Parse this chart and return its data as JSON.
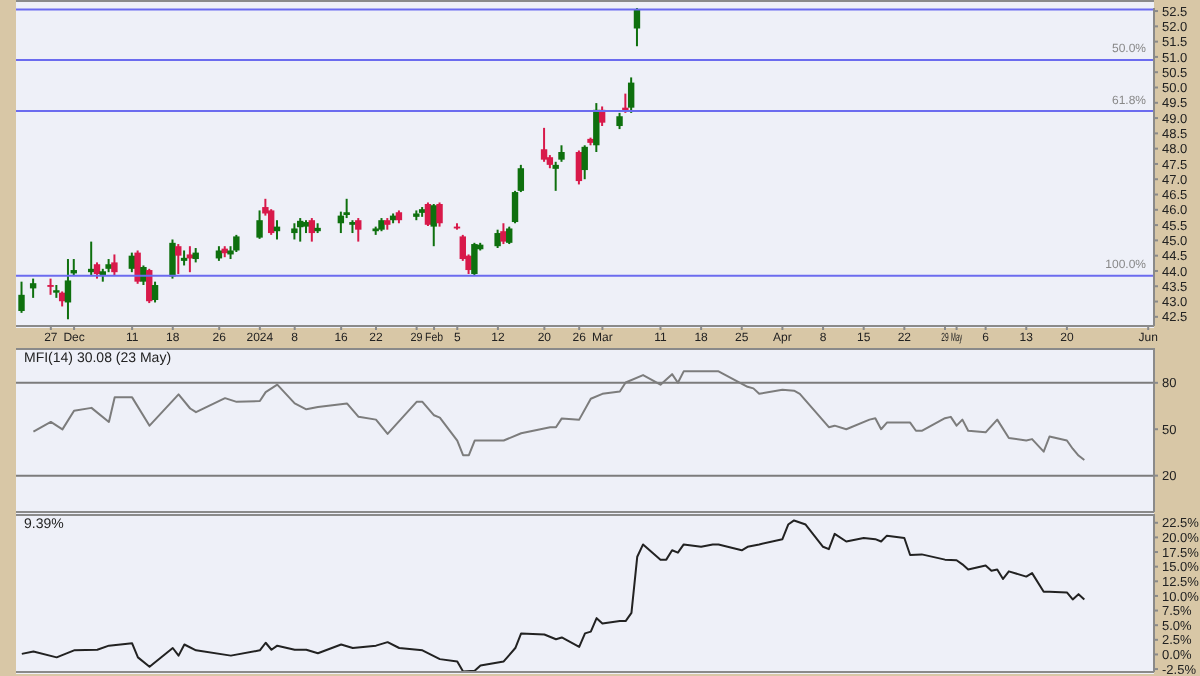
{
  "chart_data": [
    {
      "type": "candlestick",
      "x": [
        "2023-11-22",
        "2023-11-24",
        "2023-11-27",
        "2023-11-28",
        "2023-11-29",
        "2023-11-30",
        "2023-12-01",
        "2023-12-04",
        "2023-12-05",
        "2023-12-06",
        "2023-12-07",
        "2023-12-08",
        "2023-12-11",
        "2023-12-12",
        "2023-12-13",
        "2023-12-14",
        "2023-12-15",
        "2023-12-18",
        "2023-12-19",
        "2023-12-20",
        "2023-12-21",
        "2023-12-22",
        "2023-12-26",
        "2023-12-27",
        "2023-12-28",
        "2023-12-29",
        "2024-01-02",
        "2024-01-03",
        "2024-01-04",
        "2024-01-05",
        "2024-01-08",
        "2024-01-09",
        "2024-01-10",
        "2024-01-11",
        "2024-01-12",
        "2024-01-16",
        "2024-01-17",
        "2024-01-18",
        "2024-01-19",
        "2024-01-22",
        "2024-01-23",
        "2024-01-24",
        "2024-01-25",
        "2024-01-26",
        "2024-01-29",
        "2024-01-30",
        "2024-01-31",
        "2024-02-01",
        "2024-02-02",
        "2024-02-05",
        "2024-02-06",
        "2024-02-07",
        "2024-02-08",
        "2024-02-09",
        "2024-02-12",
        "2024-02-13",
        "2024-02-14",
        "2024-02-15",
        "2024-02-16",
        "2024-02-20",
        "2024-02-21",
        "2024-02-22",
        "2024-02-23",
        "2024-02-26",
        "2024-02-27",
        "2024-02-28",
        "2024-02-29",
        "2024-03-01",
        "2024-03-04",
        "2024-03-05",
        "2024-03-06",
        "2024-03-07"
      ],
      "ohlc": [
        [
          42.69,
          43.65,
          42.63,
          43.22
        ],
        [
          43.43,
          43.75,
          43.12,
          43.6
        ],
        [
          43.54,
          43.75,
          43.22,
          43.48
        ],
        [
          43.29,
          43.54,
          43.12,
          43.37
        ],
        [
          43.29,
          43.33,
          42.84,
          43.01
        ],
        [
          42.97,
          44.39,
          42.42,
          43.69
        ],
        [
          43.92,
          44.39,
          43.86,
          44.03
        ],
        [
          43.96,
          44.96,
          43.86,
          44.07
        ],
        [
          44.22,
          44.28,
          43.75,
          43.9
        ],
        [
          43.86,
          44.07,
          43.65,
          43.99
        ],
        [
          44.07,
          44.39,
          43.96,
          44.22
        ],
        [
          44.28,
          44.54,
          43.86,
          43.96
        ],
        [
          44.07,
          44.6,
          43.96,
          44.5
        ],
        [
          44.6,
          44.67,
          43.58,
          43.65
        ],
        [
          43.65,
          44.18,
          43.54,
          44.13
        ],
        [
          44.03,
          44.07,
          42.95,
          43.01
        ],
        [
          43.05,
          43.65,
          42.97,
          43.54
        ],
        [
          43.82,
          45.03,
          43.75,
          44.92
        ],
        [
          44.81,
          44.88,
          43.9,
          44.5
        ],
        [
          44.33,
          44.67,
          44.18,
          44.43
        ],
        [
          44.54,
          44.81,
          43.96,
          44.41
        ],
        [
          44.39,
          44.75,
          44.28,
          44.6
        ],
        [
          44.41,
          44.81,
          44.33,
          44.67
        ],
        [
          44.73,
          44.81,
          44.45,
          44.58
        ],
        [
          44.54,
          44.81,
          44.39,
          44.67
        ],
        [
          44.67,
          45.18,
          44.62,
          45.13
        ],
        [
          45.09,
          45.98,
          45.05,
          45.66
        ],
        [
          46.09,
          46.36,
          45.81,
          45.88
        ],
        [
          45.98,
          46.02,
          45.18,
          45.24
        ],
        [
          45.3,
          45.66,
          45.03,
          45.45
        ],
        [
          45.24,
          45.56,
          45.03,
          45.39
        ],
        [
          45.43,
          45.73,
          44.96,
          45.64
        ],
        [
          45.45,
          45.66,
          45.24,
          45.6
        ],
        [
          45.66,
          45.73,
          44.96,
          45.24
        ],
        [
          45.3,
          45.56,
          45.24,
          45.41
        ],
        [
          45.56,
          45.94,
          45.24,
          45.81
        ],
        [
          45.83,
          46.36,
          45.73,
          45.92
        ],
        [
          45.51,
          45.66,
          45.24,
          45.6
        ],
        [
          45.66,
          45.73,
          44.96,
          45.35
        ],
        [
          45.3,
          45.45,
          45.18,
          45.39
        ],
        [
          45.35,
          45.73,
          45.3,
          45.66
        ],
        [
          45.66,
          45.73,
          45.35,
          45.51
        ],
        [
          45.66,
          45.88,
          45.56,
          45.81
        ],
        [
          45.92,
          45.98,
          45.56,
          45.66
        ],
        [
          45.77,
          45.98,
          45.66,
          45.88
        ],
        [
          45.9,
          46.09,
          45.77,
          46.02
        ],
        [
          46.19,
          46.24,
          45.47,
          45.51
        ],
        [
          45.45,
          46.19,
          44.81,
          46.15
        ],
        [
          46.19,
          46.24,
          45.45,
          45.56
        ],
        [
          45.45,
          45.56,
          45.35,
          45.39
        ],
        [
          45.13,
          45.18,
          44.33,
          44.39
        ],
        [
          44.5,
          44.54,
          43.9,
          44.03
        ],
        [
          43.9,
          44.92,
          43.86,
          44.88
        ],
        [
          44.71,
          44.92,
          44.67,
          44.86
        ],
        [
          44.81,
          45.35,
          44.75,
          45.24
        ],
        [
          45.3,
          45.56,
          44.88,
          44.96
        ],
        [
          44.92,
          45.45,
          44.88,
          45.39
        ],
        [
          45.6,
          46.62,
          45.56,
          46.58
        ],
        [
          46.62,
          47.47,
          46.58,
          47.36
        ],
        [
          47.98,
          48.68,
          47.57,
          47.64
        ],
        [
          47.72,
          47.79,
          47.36,
          47.47
        ],
        [
          47.34,
          47.57,
          46.62,
          47.47
        ],
        [
          47.64,
          48.11,
          47.57,
          47.89
        ],
        [
          47.89,
          47.94,
          46.83,
          46.94
        ],
        [
          47.3,
          48.11,
          47.0,
          48.06
        ],
        [
          48.32,
          48.36,
          48.11,
          48.19
        ],
        [
          48.11,
          49.49,
          47.89,
          49.27
        ],
        [
          49.27,
          49.38,
          48.74,
          48.85
        ],
        [
          48.74,
          49.17,
          48.64,
          49.06
        ],
        [
          49.34,
          49.8,
          49.17,
          49.21
        ],
        [
          49.34,
          50.33,
          49.17,
          50.16
        ],
        [
          51.93,
          52.6,
          51.35,
          52.55
        ]
      ],
      "colors": [
        "#0e700e",
        "#0e700e",
        "#d8194a",
        "#0e700e",
        "#d8194a",
        "#0e700e",
        "#0e700e",
        "#0e700e",
        "#d8194a",
        "#0e700e",
        "#0e700e",
        "#d8194a",
        "#0e700e",
        "#d8194a",
        "#0e700e",
        "#d8194a",
        "#0e700e",
        "#0e700e",
        "#d8194a",
        "#0e700e",
        "#d8194a",
        "#0e700e",
        "#0e700e",
        "#d8194a",
        "#0e700e",
        "#0e700e",
        "#0e700e",
        "#d8194a",
        "#d8194a",
        "#0e700e",
        "#0e700e",
        "#0e700e",
        "#0e700e",
        "#d8194a",
        "#0e700e",
        "#0e700e",
        "#0e700e",
        "#0e700e",
        "#d8194a",
        "#0e700e",
        "#0e700e",
        "#d8194a",
        "#0e700e",
        "#d8194a",
        "#0e700e",
        "#0e700e",
        "#d8194a",
        "#0e700e",
        "#d8194a",
        "#d8194a",
        "#d8194a",
        "#d8194a",
        "#0e700e",
        "#0e700e",
        "#0e700e",
        "#d8194a",
        "#0e700e",
        "#0e700e",
        "#0e700e",
        "#d8194a",
        "#d8194a",
        "#0e700e",
        "#0e700e",
        "#d8194a",
        "#0e700e",
        "#d8194a",
        "#0e700e",
        "#d8194a",
        "#0e700e",
        "#d8194a",
        "#0e700e",
        "#0e700e"
      ],
      "xlim": [
        "2023-11-21",
        "2024-06-04"
      ],
      "xticks": [
        {
          "value": "2023-11-27",
          "label": "27"
        },
        {
          "value": "2023-12-01",
          "label": "Dec"
        },
        {
          "value": "2023-12-11",
          "label": "11"
        },
        {
          "value": "2023-12-18",
          "label": "18"
        },
        {
          "value": "2023-12-26",
          "label": "26"
        },
        {
          "value": "2024-01-02",
          "label": "2024"
        },
        {
          "value": "2024-01-08",
          "label": "8"
        },
        {
          "value": "2024-01-16",
          "label": "16"
        },
        {
          "value": "2024-01-22",
          "label": "22"
        },
        {
          "value": "2024-01-29",
          "label": "29"
        },
        {
          "value": "2024-02-01",
          "label": "Feb"
        },
        {
          "value": "2024-02-05",
          "label": "5"
        },
        {
          "value": "2024-02-12",
          "label": "12"
        },
        {
          "value": "2024-02-20",
          "label": "20"
        },
        {
          "value": "2024-02-26",
          "label": "26"
        },
        {
          "value": "2024-03-01",
          "label": "Mar"
        },
        {
          "value": "2024-03-11",
          "label": "11"
        },
        {
          "value": "2024-03-18",
          "label": "18"
        },
        {
          "value": "2024-03-25",
          "label": "25"
        },
        {
          "value": "2024-04-01",
          "label": "Apr"
        },
        {
          "value": "2024-04-08",
          "label": "8"
        },
        {
          "value": "2024-04-15",
          "label": "15"
        },
        {
          "value": "2024-04-22",
          "label": "22"
        },
        {
          "value": "2024-04-29",
          "label": "29"
        },
        {
          "value": "2024-05-01",
          "label": "May"
        },
        {
          "value": "2024-05-06",
          "label": "6"
        },
        {
          "value": "2024-05-13",
          "label": "13"
        },
        {
          "value": "2024-05-20",
          "label": "20"
        },
        {
          "value": "2024-06-03",
          "label": "Jun"
        }
      ],
      "ylim": [
        42.2,
        52.6
      ],
      "yticks": [
        42.5,
        {
          "value": 43,
          "label": "43.0"
        },
        43.5,
        {
          "value": 44,
          "label": "44.0"
        },
        44.5,
        {
          "value": 45,
          "label": "45.0"
        },
        45.5,
        {
          "value": 46,
          "label": "46.0"
        },
        46.5,
        {
          "value": 47,
          "label": "47.0"
        },
        47.5,
        {
          "value": 48,
          "label": "48.0"
        },
        48.5,
        {
          "value": 49,
          "label": "49.0"
        },
        49.5,
        {
          "value": 50,
          "label": "50.0"
        },
        50.5,
        {
          "value": 51,
          "label": "51.0"
        },
        51.5,
        {
          "value": 52,
          "label": "52.0"
        },
        52.5
      ],
      "ref_lines": [
        {
          "axis": "y",
          "value": 52.55,
          "color": "#6b6bef"
        },
        {
          "axis": "y",
          "value": 50.9,
          "color": "#6b6bef"
        },
        {
          "axis": "y",
          "value": 49.23,
          "color": "#6b6bef"
        },
        {
          "axis": "y",
          "value": 43.84,
          "color": "#6b6bef"
        }
      ],
      "annotations": [
        {
          "text": "50.0%",
          "y": 50.9
        },
        {
          "text": "61.8%",
          "y": 49.23
        },
        {
          "text": "100.0%",
          "y": 43.84
        }
      ]
    },
    {
      "type": "line",
      "title": "MFI(14) 30.08 (23 May)",
      "x": [
        "2023-11-24",
        "2023-11-27",
        "2023-11-29",
        "2023-12-01",
        "2023-12-04",
        "2023-12-07",
        "2023-12-08",
        "2023-12-11",
        "2023-12-14",
        "2023-12-19",
        "2023-12-21",
        "2023-12-22",
        "2023-12-27",
        "2023-12-29",
        "2024-01-02",
        "2024-01-03",
        "2024-01-05",
        "2024-01-08",
        "2024-01-10",
        "2024-01-12",
        "2024-01-17",
        "2024-01-19",
        "2024-01-22",
        "2024-01-24",
        "2024-01-29",
        "2024-01-30",
        "2024-02-01",
        "2024-02-02",
        "2024-02-05",
        "2024-02-06",
        "2024-02-07",
        "2024-02-08",
        "2024-02-13",
        "2024-02-16",
        "2024-02-21",
        "2024-02-22",
        "2024-02-23",
        "2024-02-26",
        "2024-02-28",
        "2024-03-01",
        "2024-03-04",
        "2024-03-05",
        "2024-03-08",
        "2024-03-11",
        "2024-03-13",
        "2024-03-14",
        "2024-03-15",
        "2024-03-21",
        "2024-03-26",
        "2024-03-27",
        "2024-03-28",
        "2024-04-01",
        "2024-04-03",
        "2024-04-04",
        "2024-04-09",
        "2024-04-10",
        "2024-04-12",
        "2024-04-16",
        "2024-04-17",
        "2024-04-18",
        "2024-04-19",
        "2024-04-23",
        "2024-04-24",
        "2024-04-25",
        "2024-04-29",
        "2024-04-30",
        "2024-05-01",
        "2024-05-02",
        "2024-05-03",
        "2024-05-06",
        "2024-05-08",
        "2024-05-10",
        "2024-05-13",
        "2024-05-14",
        "2024-05-16",
        "2024-05-17",
        "2024-05-20",
        "2024-05-21",
        "2024-05-22",
        "2024-05-23"
      ],
      "series": [
        {
          "color": "#7c7c7c",
          "values": [
            48.5,
            54.7,
            49.9,
            61.9,
            63.8,
            54.7,
            70.6,
            70.6,
            52.3,
            72.5,
            63.4,
            61,
            70.1,
            67.7,
            68.2,
            74,
            78.8,
            66.7,
            62.9,
            64.3,
            66.7,
            58,
            56.2,
            47,
            67.7,
            67.7,
            59,
            57.5,
            42.6,
            33.2,
            33.2,
            42.7,
            42.7,
            47.4,
            51.3,
            51.3,
            57,
            56.2,
            69.7,
            72.9,
            74.4,
            80.2,
            85,
            78.8,
            85.6,
            80,
            87.4,
            87.4,
            77.4,
            76.4,
            72.9,
            75.5,
            74.9,
            72.9,
            51.3,
            52.3,
            50,
            56.2,
            57.1,
            50,
            54.3,
            54.3,
            49,
            49,
            57.1,
            58,
            52.3,
            56.2,
            49,
            48,
            56.2,
            44.3,
            42.7,
            43.6,
            35.5,
            45.3,
            42.7,
            37.4,
            33,
            30.08
          ]
        }
      ],
      "xlim": [
        "2023-11-21",
        "2024-06-04"
      ],
      "ylim": [
        -3.5,
        102.5
      ],
      "yticks": [
        20,
        50,
        80
      ],
      "tick_labels": "y",
      "ref_lines": [
        {
          "axis": "y",
          "value": 80,
          "color": "#7c7c7c"
        },
        {
          "axis": "y",
          "value": 20,
          "color": "#7c7c7c"
        }
      ]
    },
    {
      "type": "line",
      "title": "9.39%",
      "x": [
        "2023-11-22",
        "2023-11-24",
        "2023-11-28",
        "2023-12-01",
        "2023-12-05",
        "2023-12-07",
        "2023-12-11",
        "2023-12-12",
        "2023-12-14",
        "2023-12-18",
        "2023-12-19",
        "2023-12-20",
        "2023-12-22",
        "2023-12-28",
        "2024-01-02",
        "2024-01-03",
        "2024-01-04",
        "2024-01-05",
        "2024-01-08",
        "2024-01-10",
        "2024-01-12",
        "2024-01-16",
        "2024-01-18",
        "2024-01-22",
        "2024-01-24",
        "2024-01-26",
        "2024-01-30",
        "2024-02-02",
        "2024-02-05",
        "2024-02-06",
        "2024-02-08",
        "2024-02-09",
        "2024-02-13",
        "2024-02-15",
        "2024-02-16",
        "2024-02-20",
        "2024-02-22",
        "2024-02-23",
        "2024-02-26",
        "2024-02-27",
        "2024-02-28",
        "2024-02-29",
        "2024-03-01",
        "2024-03-04",
        "2024-03-05",
        "2024-03-06",
        "2024-03-07",
        "2024-03-08",
        "2024-03-11",
        "2024-03-12",
        "2024-03-13",
        "2024-03-14",
        "2024-03-15",
        "2024-03-18",
        "2024-03-20",
        "2024-03-21",
        "2024-03-25",
        "2024-03-26",
        "2024-03-28",
        "2024-04-01",
        "2024-04-02",
        "2024-04-03",
        "2024-04-05",
        "2024-04-08",
        "2024-04-09",
        "2024-04-10",
        "2024-04-12",
        "2024-04-15",
        "2024-04-17",
        "2024-04-18",
        "2024-04-19",
        "2024-04-22",
        "2024-04-23",
        "2024-04-25",
        "2024-04-29",
        "2024-05-01",
        "2024-05-02",
        "2024-05-03",
        "2024-05-06",
        "2024-05-07",
        "2024-05-08",
        "2024-05-09",
        "2024-05-10",
        "2024-05-13",
        "2024-05-14",
        "2024-05-16",
        "2024-05-17",
        "2024-05-20",
        "2024-05-21",
        "2024-05-22",
        "2024-05-23"
      ],
      "series": [
        {
          "color": "#222222",
          "values": [
            0.1,
            0.5,
            -0.5,
            0.7,
            0.8,
            1.5,
            1.9,
            -0.5,
            -2.1,
            1.1,
            -0.2,
            1.7,
            0.7,
            -0.2,
            0.7,
            2,
            0.8,
            1.5,
            0.8,
            0.8,
            0.2,
            1.7,
            1.1,
            1.5,
            2.1,
            1.1,
            0.7,
            -0.8,
            -1.2,
            -2.9,
            -2.8,
            -1.9,
            -1.2,
            1.1,
            3.6,
            3.4,
            2.6,
            2.9,
            1.3,
            3.6,
            3.9,
            6.2,
            5.3,
            5.7,
            5.7,
            7.1,
            16.7,
            18.8,
            16.2,
            16.2,
            17.8,
            17.4,
            18.8,
            18.4,
            18.8,
            18.8,
            17.8,
            18.4,
            18.8,
            19.7,
            22.2,
            22.9,
            22.2,
            18.4,
            18,
            20.6,
            19.3,
            19.9,
            19.7,
            19.3,
            20.3,
            19.9,
            17,
            17.1,
            16.2,
            16.1,
            15.4,
            14.5,
            15.2,
            14.3,
            14.5,
            12.9,
            14.2,
            13.3,
            13.9,
            10.7,
            10.7,
            10.6,
            9.4,
            10.3,
            9.39
          ]
        }
      ],
      "xlim": [
        "2023-11-21",
        "2024-06-04"
      ],
      "ylim": [
        -3,
        24
      ],
      "yticks": [
        {
          "value": -2.5,
          "label": "-2.5%"
        },
        {
          "value": 0,
          "label": "0.0%"
        },
        {
          "value": 2.5,
          "label": "2.5%"
        },
        {
          "value": 5,
          "label": "5.0%"
        },
        {
          "value": 7.5,
          "label": "7.5%"
        },
        {
          "value": 10,
          "label": "10.0%"
        },
        {
          "value": 12.5,
          "label": "12.5%"
        },
        {
          "value": 15,
          "label": "15.0%"
        },
        {
          "value": 17.5,
          "label": "17.5%"
        },
        {
          "value": 20,
          "label": "20.0%"
        },
        {
          "value": 22.5,
          "label": "22.5%"
        }
      ],
      "tick_labels": "y"
    }
  ]
}
